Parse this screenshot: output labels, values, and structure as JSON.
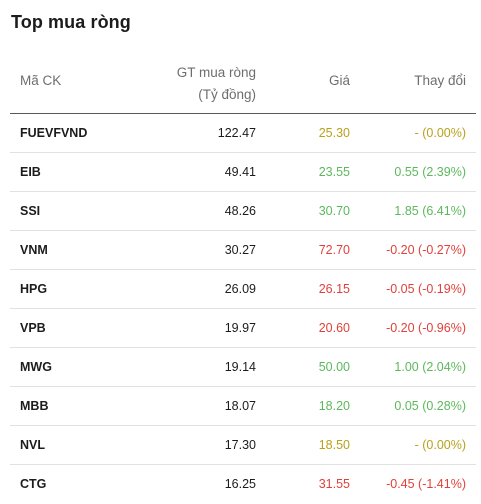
{
  "title": "Top mua ròng",
  "headers": {
    "code": "Mã CK",
    "value_line1": "GT mua ròng",
    "value_line2": "(Tỷ đồng)",
    "price": "Giá",
    "change": "Thay đổi"
  },
  "colors": {
    "up": "#5cb85c",
    "down": "#e0413a",
    "ref": "#b8a11c"
  },
  "rows": [
    {
      "code": "FUEVFVND",
      "value": "122.47",
      "price": "25.30",
      "change": "- (0.00%)",
      "status": "ref"
    },
    {
      "code": "EIB",
      "value": "49.41",
      "price": "23.55",
      "change": "0.55 (2.39%)",
      "status": "up"
    },
    {
      "code": "SSI",
      "value": "48.26",
      "price": "30.70",
      "change": "1.85 (6.41%)",
      "status": "up"
    },
    {
      "code": "VNM",
      "value": "30.27",
      "price": "72.70",
      "change": "-0.20 (-0.27%)",
      "status": "down"
    },
    {
      "code": "HPG",
      "value": "26.09",
      "price": "26.15",
      "change": "-0.05 (-0.19%)",
      "status": "down"
    },
    {
      "code": "VPB",
      "value": "19.97",
      "price": "20.60",
      "change": "-0.20 (-0.96%)",
      "status": "down"
    },
    {
      "code": "MWG",
      "value": "19.14",
      "price": "50.00",
      "change": "1.00 (2.04%)",
      "status": "up"
    },
    {
      "code": "MBB",
      "value": "18.07",
      "price": "18.20",
      "change": "0.05 (0.28%)",
      "status": "up"
    },
    {
      "code": "NVL",
      "value": "17.30",
      "price": "18.50",
      "change": "- (0.00%)",
      "status": "ref"
    },
    {
      "code": "CTG",
      "value": "16.25",
      "price": "31.55",
      "change": "-0.45 (-1.41%)",
      "status": "down"
    }
  ]
}
